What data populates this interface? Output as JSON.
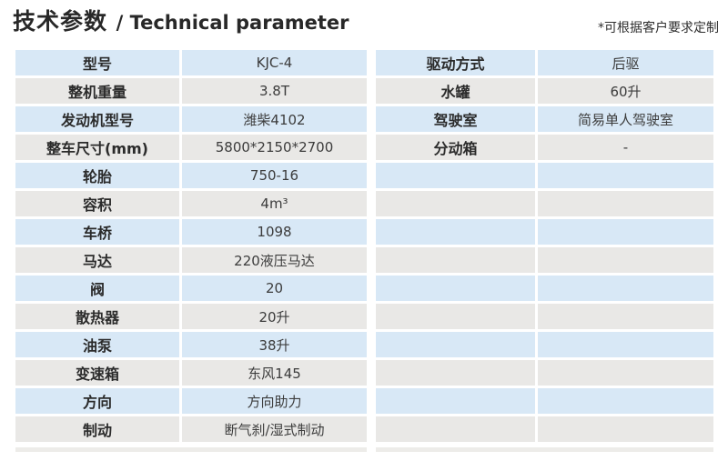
{
  "header": {
    "title_zh": "技术参数",
    "title_en": "/ Technical parameter",
    "note": "*可根据客户要求定制"
  },
  "colors": {
    "row_blue": "#d8e8f6",
    "row_gray": "#e9e8e6",
    "title_text": "#282828",
    "label_text": "#2b2b2b",
    "value_text": "#3c3c3c"
  },
  "left_table": {
    "rows": [
      {
        "label": "型号",
        "value": "KJC-4"
      },
      {
        "label": "整机重量",
        "value": "3.8T"
      },
      {
        "label": "发动机型号",
        "value": "潍柴4102"
      },
      {
        "label": "整车尺寸(mm)",
        "value": "5800*2150*2700"
      },
      {
        "label": "轮胎",
        "value": "750-16"
      },
      {
        "label": "容积",
        "value": "4m³"
      },
      {
        "label": "车桥",
        "value": "1098"
      },
      {
        "label": "马达",
        "value": "220液压马达"
      },
      {
        "label": "阀",
        "value": "20"
      },
      {
        "label": "散热器",
        "value": "20升"
      },
      {
        "label": "油泵",
        "value": "38升"
      },
      {
        "label": "变速箱",
        "value": "东风145"
      },
      {
        "label": "方向",
        "value": "方向助力"
      },
      {
        "label": "制动",
        "value": "断气刹/湿式制动"
      }
    ]
  },
  "right_table": {
    "rows": [
      {
        "label": "驱动方式",
        "value": "后驱"
      },
      {
        "label": "水罐",
        "value": "60升"
      },
      {
        "label": "驾驶室",
        "value": "简易单人驾驶室"
      },
      {
        "label": "分动箱",
        "value": "-"
      },
      {
        "label": "",
        "value": ""
      },
      {
        "label": "",
        "value": ""
      },
      {
        "label": "",
        "value": ""
      },
      {
        "label": "",
        "value": ""
      },
      {
        "label": "",
        "value": ""
      },
      {
        "label": "",
        "value": ""
      },
      {
        "label": "",
        "value": ""
      },
      {
        "label": "",
        "value": ""
      },
      {
        "label": "",
        "value": ""
      },
      {
        "label": "",
        "value": ""
      }
    ]
  }
}
